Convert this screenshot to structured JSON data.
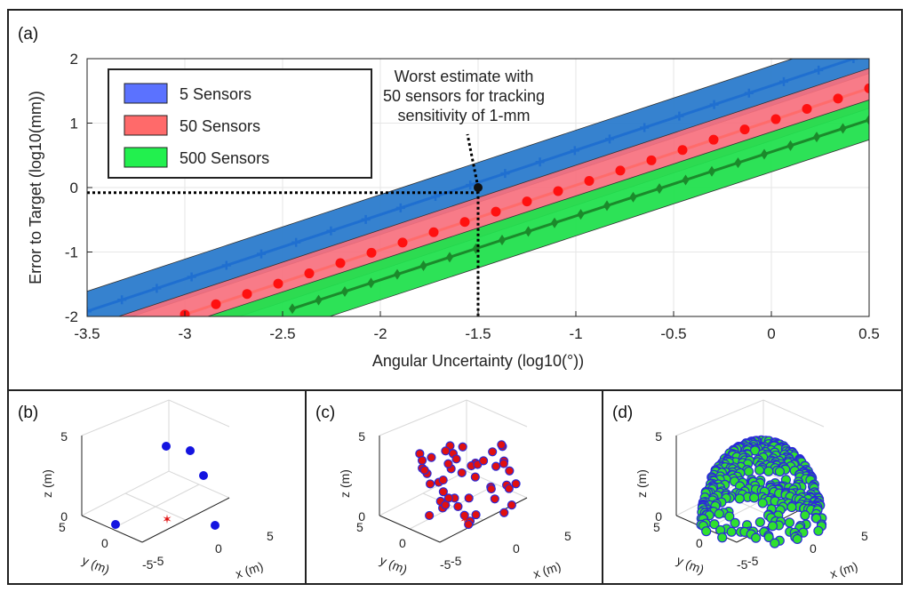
{
  "panel_labels": [
    "(a)",
    "(b)",
    "(c)",
    "(d)"
  ],
  "chart_data": [
    {
      "type": "line",
      "panel": "(a)",
      "xlabel": "Angular Uncertainty (log10(°))",
      "ylabel": "Error to Target (log10(mm))",
      "xlim": [
        -3.5,
        0.5
      ],
      "ylim": [
        -2,
        2
      ],
      "xticks": [
        "-3.5",
        "-3",
        "-2.5",
        "-2",
        "-1.5",
        "-1",
        "-0.5",
        "0",
        "0.5"
      ],
      "yticks": [
        "-2",
        "-1",
        "0",
        "1",
        "2"
      ],
      "grid": true,
      "legend_position": "top-left",
      "series": [
        {
          "name": "5 Sensors",
          "color": "#1f6fd0",
          "band_color": "#2b7bcc",
          "marker": "plus",
          "x0": -3.5,
          "y0": -1.92,
          "x1": 0.42,
          "y1": 2.0,
          "band_width": 0.62
        },
        {
          "name": "50 Sensors",
          "color": "#ff6b6b",
          "band_color": "#f7707e",
          "marker": "circle",
          "x0": -3.0,
          "y0": -1.97,
          "x1": 0.5,
          "y1": 1.54,
          "band_width": 0.62
        },
        {
          "name": "500 Sensors",
          "color": "#1b8a2b",
          "band_color": "#22e04e",
          "marker": "diamond",
          "x0": -2.45,
          "y0": -1.88,
          "x1": 0.5,
          "y1": 1.05,
          "band_width": 0.62
        }
      ],
      "annotation": {
        "lines": [
          "Worst estimate with",
          "50 sensors for tracking",
          "sensitivity of 1-mm"
        ],
        "point": {
          "x": -1.5,
          "y": 0.0
        }
      }
    },
    {
      "type": "scatter",
      "panel": "(b)",
      "xlabel": "x (m)",
      "ylabel": "y (m)",
      "zlabel": "z (m)",
      "xticks": [
        "-5",
        "0",
        "5"
      ],
      "yticks": [
        "5",
        "0",
        "-5"
      ],
      "zticks": [
        "0",
        "5"
      ],
      "points": [
        [
          -60,
          -48
        ],
        [
          -45,
          -40
        ],
        [
          -33,
          -22
        ],
        [
          -78,
          -38
        ],
        [
          -95,
          -60
        ],
        [
          -54,
          -42
        ]
      ],
      "marker_color": "#1414e0"
    },
    {
      "type": "scatter",
      "panel": "(c)",
      "xlabel": "x (m)",
      "ylabel": "y (m)",
      "zlabel": "z (m)",
      "xticks": [
        "-5",
        "0",
        "5"
      ],
      "yticks": [
        "5",
        "0",
        "-5"
      ],
      "zticks": [
        "0",
        "5"
      ],
      "marker_color": "#e01010",
      "marker_edge": "#2a2ad8"
    },
    {
      "type": "scatter",
      "panel": "(d)",
      "xlabel": "x (m)",
      "ylabel": "y (m)",
      "zlabel": "z (m)",
      "xticks": [
        "-5",
        "0",
        "5"
      ],
      "yticks": [
        "5",
        "0",
        "-5"
      ],
      "zticks": [
        "0",
        "5"
      ],
      "marker_color": "#2fe02f",
      "marker_edge": "#2a2ad8"
    }
  ]
}
